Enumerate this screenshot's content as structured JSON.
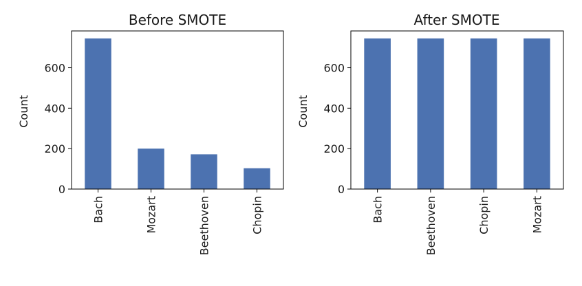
{
  "chart_data": [
    {
      "type": "bar",
      "title": "Before SMOTE",
      "xlabel": "",
      "ylabel": "Count",
      "categories": [
        "Bach",
        "Mozart",
        "Beethoven",
        "Chopin"
      ],
      "values": [
        745,
        200,
        172,
        103
      ],
      "yticks": [
        0,
        200,
        400,
        600
      ],
      "ylim": [
        0,
        782
      ],
      "color": "#4c72b0",
      "grid": false
    },
    {
      "type": "bar",
      "title": "After SMOTE",
      "xlabel": "",
      "ylabel": "Count",
      "categories": [
        "Bach",
        "Beethoven",
        "Chopin",
        "Mozart"
      ],
      "values": [
        745,
        745,
        745,
        745
      ],
      "yticks": [
        0,
        200,
        400,
        600
      ],
      "ylim": [
        0,
        782
      ],
      "color": "#4c72b0",
      "grid": false
    }
  ]
}
